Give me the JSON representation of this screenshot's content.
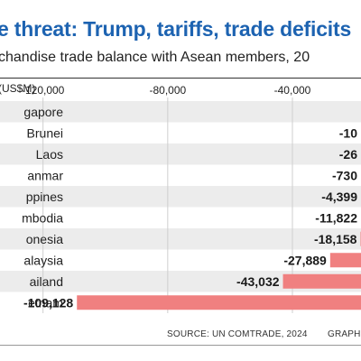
{
  "title": "e threat: Trump, tariffs, trade deficits",
  "subtitle": "chandise trade balance with Asean members, 20",
  "unit_label": "(US$M)",
  "source": "SOURCE: UN COMTRADE, 2024",
  "credit": "GRAPHIC",
  "chart_data": {
    "type": "bar",
    "orientation": "horizontal",
    "categories": [
      "gapore",
      "Brunei",
      "Laos",
      "anmar",
      "ppines",
      "mbodia",
      "onesia",
      "alaysia",
      "ailand",
      "etnam"
    ],
    "values": [
      null,
      -10,
      -26,
      -730,
      -4399,
      -11822,
      -18158,
      -27889,
      -43032,
      -109128
    ],
    "value_labels": [
      "",
      "-10",
      "-26",
      "-730",
      "-4,399",
      "-11,822",
      "-18,158",
      "-27,889",
      "-43,032",
      "-109,128"
    ],
    "xticks": [
      -120000,
      -80000,
      -40000
    ],
    "xtick_labels": [
      "-120,000",
      "-80,000",
      "-40,000"
    ],
    "xlim": [
      -133800,
      -18000
    ],
    "bar_color": "#f08080",
    "stripe_color": "#ececec",
    "grid": true
  }
}
